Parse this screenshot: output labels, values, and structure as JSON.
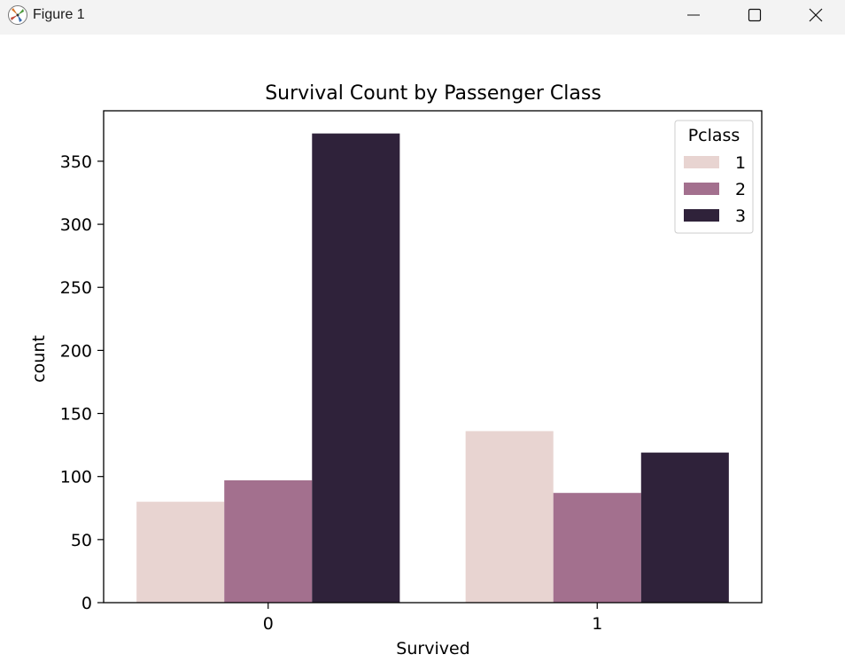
{
  "window": {
    "title": "Figure 1",
    "icons": {
      "app": "matplotlib-icon",
      "minimize": "minimize-icon",
      "maximize": "maximize-icon",
      "close": "close-icon"
    }
  },
  "chart_data": {
    "type": "bar",
    "title": "Survival Count by Passenger Class",
    "xlabel": "Survived",
    "ylabel": "count",
    "categories": [
      "0",
      "1"
    ],
    "ylim": [
      0,
      390
    ],
    "yticks": [
      0,
      50,
      100,
      150,
      200,
      250,
      300,
      350
    ],
    "legend": {
      "title": "Pclass",
      "placement": "top-right"
    },
    "grid": false,
    "series": [
      {
        "name": "1",
        "color": "#e8d4d1",
        "values": [
          80,
          136
        ]
      },
      {
        "name": "2",
        "color": "#a3708e",
        "values": [
          97,
          87
        ]
      },
      {
        "name": "3",
        "color": "#2f223a",
        "values": [
          372,
          119
        ]
      }
    ]
  }
}
